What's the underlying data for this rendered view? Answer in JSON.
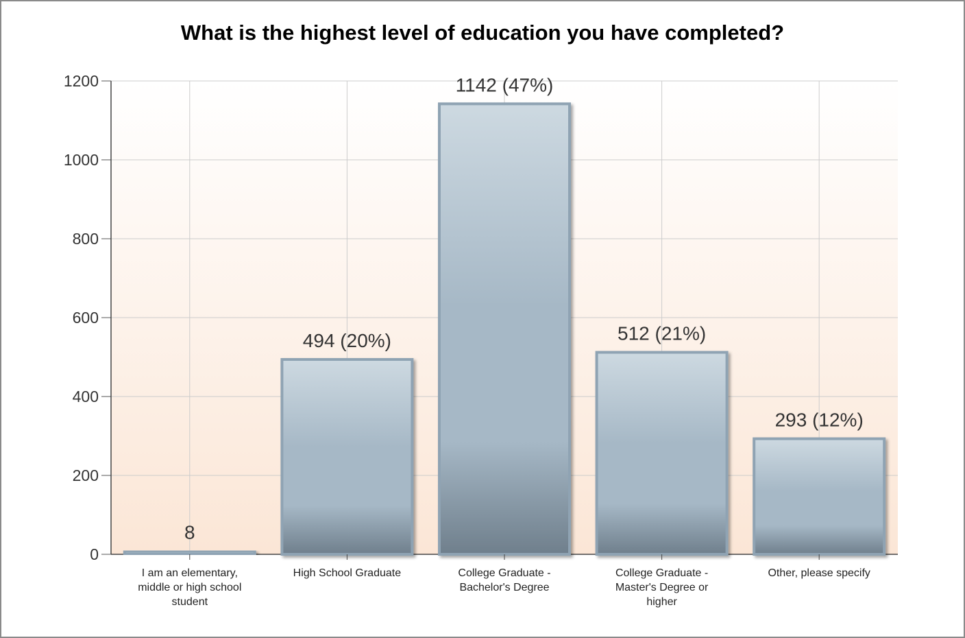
{
  "chart_data": {
    "type": "bar",
    "title": "What is the highest level of education you have completed?",
    "categories": [
      "I am an elementary, middle or high school student",
      "High School Graduate",
      "College Graduate - Bachelor's Degree",
      "College Graduate - Master's Degree or higher",
      "Other, please specify"
    ],
    "category_lines": [
      [
        "I am an elementary,",
        "middle or high school",
        "student"
      ],
      [
        "High School Graduate"
      ],
      [
        "College Graduate -",
        "Bachelor's Degree"
      ],
      [
        "College Graduate -",
        "Master's Degree or",
        "higher"
      ],
      [
        "Other, please specify"
      ]
    ],
    "values": [
      8,
      494,
      1142,
      512,
      293
    ],
    "data_labels": [
      "8",
      "494 (20%)",
      "1142 (47%)",
      "512 (21%)",
      "293 (12%)"
    ],
    "yticks": [
      0,
      200,
      400,
      600,
      800,
      1000,
      1200
    ],
    "ylim": [
      0,
      1200
    ],
    "grid": true,
    "colors": {
      "bar_light": "#cdd9e1",
      "bar_mid": "#a6b8c6",
      "bar_dark": "#6f7f8c",
      "bar_border": "#8fa3b3",
      "bg_top": "#ffffff",
      "bg_bottom": "#fbe6d6",
      "grid": "#cccccc"
    }
  }
}
